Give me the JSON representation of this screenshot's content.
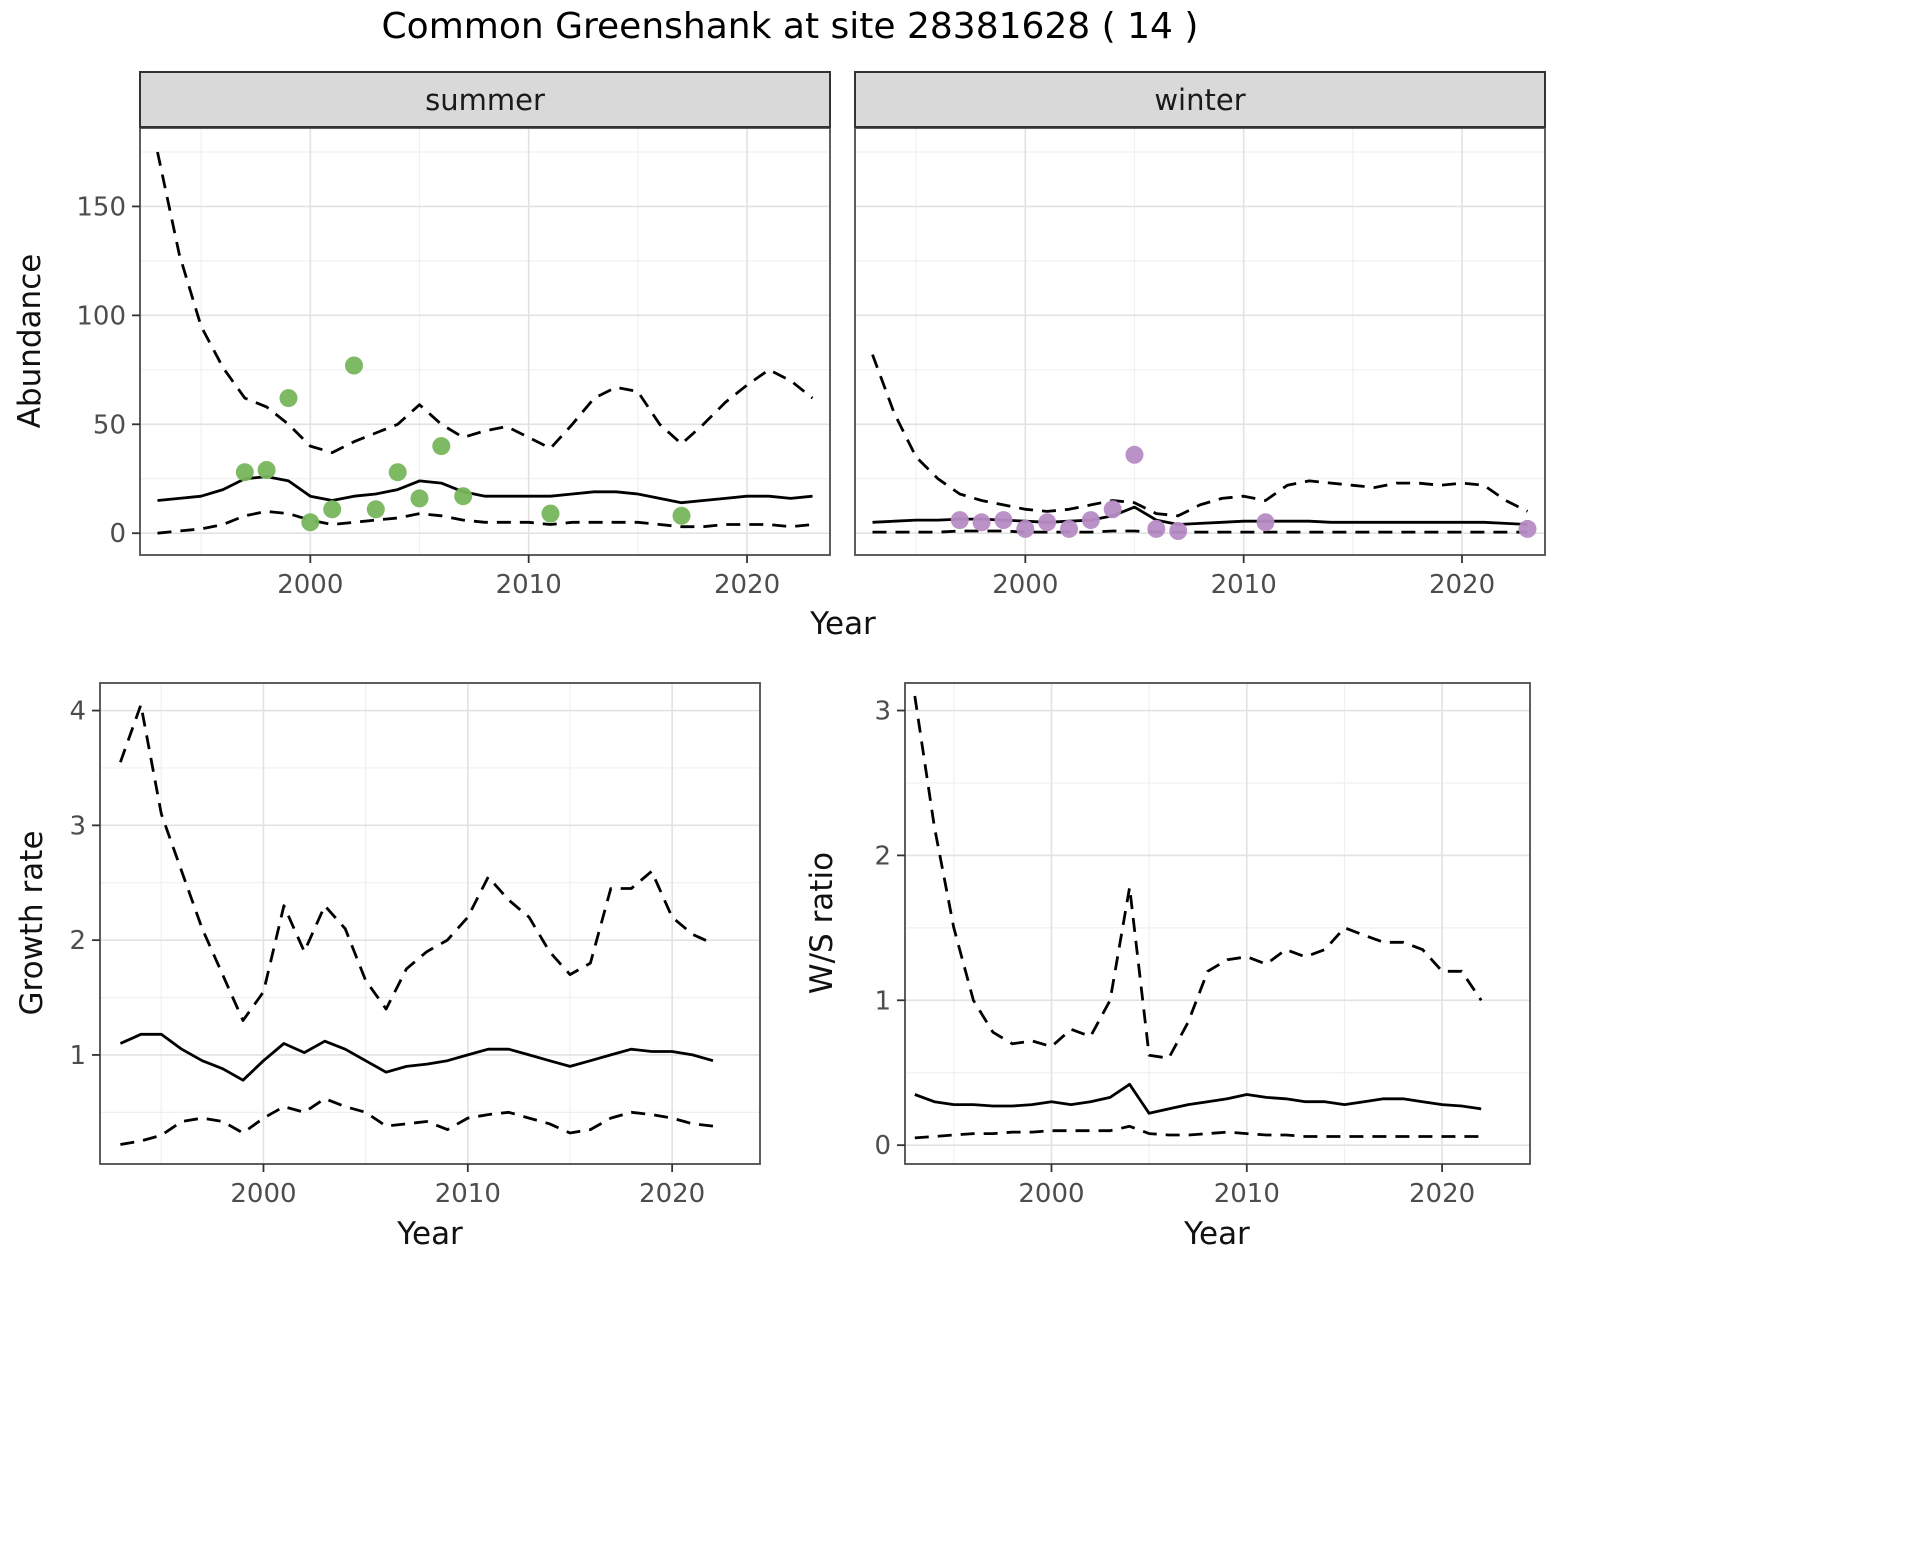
{
  "title": "Common Greenshank at site 28381628 ( 14 )",
  "colors": {
    "line": "#000000",
    "grid_major": "#e2e2e2",
    "grid_minor": "#f0f0f0",
    "strip_bg": "#d9d9d9",
    "panel_border": "#4d4d4d",
    "axis_text": "#4d4d4d",
    "tick": "#333333",
    "summer_points": "#77b55b",
    "winter_points": "#b78cc4"
  },
  "chart_data": [
    {
      "name": "summer-abundance",
      "type": "line",
      "facet": "summer",
      "xlabel": "Year",
      "ylabel": "Abundance",
      "xlim": [
        1992.2,
        2023.8
      ],
      "ylim": [
        -10,
        186
      ],
      "xticks": [
        2000,
        2010,
        2020
      ],
      "yticks": [
        0,
        50,
        100,
        150
      ],
      "xminor": [
        1995,
        2005,
        2015
      ],
      "yminor": [
        25,
        75,
        125,
        175
      ],
      "x": [
        1993,
        1994,
        1995,
        1996,
        1997,
        1998,
        1999,
        2000,
        2001,
        2002,
        2003,
        2004,
        2005,
        2006,
        2007,
        2008,
        2009,
        2010,
        2011,
        2012,
        2013,
        2014,
        2015,
        2016,
        2017,
        2018,
        2019,
        2020,
        2021,
        2022,
        2023
      ],
      "series": [
        {
          "name": "upper-ci",
          "style": "dashed",
          "values": [
            175,
            128,
            95,
            76,
            62,
            58,
            50,
            40,
            37,
            42,
            46,
            50,
            59,
            50,
            44,
            47,
            49,
            44,
            39,
            50,
            62,
            67,
            65,
            50,
            41,
            50,
            60,
            68,
            75,
            70,
            62
          ]
        },
        {
          "name": "median",
          "style": "solid",
          "values": [
            15,
            16,
            17,
            20,
            25,
            26,
            24,
            17,
            15,
            17,
            18,
            20,
            24,
            23,
            19,
            17,
            17,
            17,
            17,
            18,
            19,
            19,
            18,
            16,
            14,
            15,
            16,
            17,
            17,
            16,
            17
          ]
        },
        {
          "name": "lower-ci",
          "style": "dashed",
          "values": [
            0,
            1,
            2,
            4,
            8,
            10,
            9,
            6,
            4,
            5,
            6,
            7,
            9,
            8,
            6,
            5,
            5,
            5,
            4,
            5,
            5,
            5,
            5,
            4,
            3,
            3,
            4,
            4,
            4,
            3,
            4
          ]
        }
      ],
      "points": {
        "name": "observed-counts",
        "color": "#77b55b",
        "x": [
          1997,
          1998,
          1999,
          2000,
          2001,
          2002,
          2003,
          2004,
          2005,
          2006,
          2007,
          2011,
          2017
        ],
        "y": [
          28,
          29,
          62,
          5,
          11,
          77,
          11,
          28,
          16,
          40,
          17,
          9,
          8
        ]
      }
    },
    {
      "name": "winter-abundance",
      "type": "line",
      "facet": "winter",
      "xlabel": "Year",
      "ylabel": "Abundance",
      "xlim": [
        1992.2,
        2023.8
      ],
      "ylim": [
        -10,
        186
      ],
      "xticks": [
        2000,
        2010,
        2020
      ],
      "yticks": [
        0,
        50,
        100,
        150
      ],
      "xminor": [
        1995,
        2005,
        2015
      ],
      "yminor": [
        25,
        75,
        125,
        175
      ],
      "x": [
        1993,
        1994,
        1995,
        1996,
        1997,
        1998,
        1999,
        2000,
        2001,
        2002,
        2003,
        2004,
        2005,
        2006,
        2007,
        2008,
        2009,
        2010,
        2011,
        2012,
        2013,
        2014,
        2015,
        2016,
        2017,
        2018,
        2019,
        2020,
        2021,
        2022,
        2023
      ],
      "series": [
        {
          "name": "upper-ci",
          "style": "dashed",
          "values": [
            82,
            55,
            35,
            25,
            18,
            15,
            13,
            11,
            10,
            11,
            13,
            15,
            14,
            9,
            8,
            13,
            16,
            17,
            15,
            22,
            24,
            23,
            22,
            21,
            23,
            23,
            22,
            23,
            22,
            15,
            10
          ]
        },
        {
          "name": "median",
          "style": "solid",
          "values": [
            5,
            5.5,
            6,
            6,
            6.5,
            6.5,
            6,
            5.5,
            5,
            5.5,
            6,
            8,
            12,
            6,
            4,
            4.5,
            5,
            5.5,
            5.5,
            5.5,
            5.5,
            5,
            5,
            5,
            5,
            5,
            5,
            5,
            5,
            4.5,
            4
          ]
        },
        {
          "name": "lower-ci",
          "style": "dashed",
          "values": [
            0.5,
            0.5,
            0.5,
            0.5,
            1,
            1,
            1,
            0.5,
            0.5,
            0.5,
            0.5,
            1,
            1,
            0.5,
            0.5,
            0.5,
            0.5,
            0.5,
            0.5,
            0.5,
            0.5,
            0.5,
            0.5,
            0.5,
            0.5,
            0.5,
            0.5,
            0.5,
            0.5,
            0.5,
            0.5
          ]
        }
      ],
      "points": {
        "name": "observed-counts",
        "color": "#b78cc4",
        "x": [
          1997,
          1998,
          1999,
          2000,
          2001,
          2002,
          2003,
          2004,
          2005,
          2006,
          2007,
          2011,
          2023
        ],
        "y": [
          6,
          5,
          6,
          2,
          5,
          2,
          6,
          11,
          36,
          2,
          1,
          5,
          2
        ]
      }
    },
    {
      "name": "growth-rate",
      "type": "line",
      "facet": "",
      "xlabel": "Year",
      "ylabel": "Growth rate",
      "xlim": [
        1992,
        2024.3
      ],
      "ylim": [
        0.05,
        4.24
      ],
      "xticks": [
        2000,
        2010,
        2020
      ],
      "yticks": [
        1,
        2,
        3,
        4
      ],
      "xminor": [
        1995,
        2005,
        2015
      ],
      "yminor": [
        0.5,
        1.5,
        2.5,
        3.5
      ],
      "x": [
        1993,
        1994,
        1995,
        1996,
        1997,
        1998,
        1999,
        2000,
        2001,
        2002,
        2003,
        2004,
        2005,
        2006,
        2007,
        2008,
        2009,
        2010,
        2011,
        2012,
        2013,
        2014,
        2015,
        2016,
        2017,
        2018,
        2019,
        2020,
        2021,
        2022
      ],
      "series": [
        {
          "name": "upper-ci",
          "style": "dashed",
          "values": [
            3.55,
            4.05,
            3.1,
            2.6,
            2.1,
            1.7,
            1.3,
            1.55,
            2.3,
            1.9,
            2.3,
            2.1,
            1.65,
            1.4,
            1.75,
            1.9,
            2.0,
            2.2,
            2.55,
            2.35,
            2.2,
            1.9,
            1.7,
            1.8,
            2.45,
            2.45,
            2.6,
            2.2,
            2.05,
            1.97
          ]
        },
        {
          "name": "median",
          "style": "solid",
          "values": [
            1.1,
            1.18,
            1.18,
            1.05,
            0.95,
            0.88,
            0.78,
            0.95,
            1.1,
            1.02,
            1.12,
            1.05,
            0.95,
            0.85,
            0.9,
            0.92,
            0.95,
            1.0,
            1.05,
            1.05,
            1.0,
            0.95,
            0.9,
            0.95,
            1.0,
            1.05,
            1.03,
            1.03,
            1.0,
            0.95
          ]
        },
        {
          "name": "lower-ci",
          "style": "dashed",
          "values": [
            0.22,
            0.25,
            0.3,
            0.42,
            0.45,
            0.42,
            0.32,
            0.45,
            0.55,
            0.5,
            0.62,
            0.55,
            0.5,
            0.38,
            0.4,
            0.42,
            0.35,
            0.45,
            0.48,
            0.5,
            0.45,
            0.4,
            0.32,
            0.35,
            0.45,
            0.5,
            0.48,
            0.45,
            0.4,
            0.38
          ]
        }
      ],
      "points": null
    },
    {
      "name": "ws-ratio",
      "type": "line",
      "facet": "",
      "xlabel": "Year",
      "ylabel": "W/S ratio",
      "xlim": [
        1992.5,
        2024.5
      ],
      "ylim": [
        -0.13,
        3.19
      ],
      "xticks": [
        2000,
        2010,
        2020
      ],
      "yticks": [
        0,
        1,
        2,
        3
      ],
      "xminor": [
        1995,
        2005,
        2015
      ],
      "yminor": [
        0.5,
        1.5,
        2.5
      ],
      "x": [
        1993,
        1994,
        1995,
        1996,
        1997,
        1998,
        1999,
        2000,
        2001,
        2002,
        2003,
        2004,
        2005,
        2006,
        2007,
        2008,
        2009,
        2010,
        2011,
        2012,
        2013,
        2014,
        2015,
        2016,
        2017,
        2018,
        2019,
        2020,
        2021,
        2022
      ],
      "series": [
        {
          "name": "upper-ci",
          "style": "dashed",
          "values": [
            3.1,
            2.2,
            1.5,
            1.0,
            0.78,
            0.7,
            0.72,
            0.68,
            0.8,
            0.75,
            1.0,
            1.78,
            0.62,
            0.6,
            0.85,
            1.2,
            1.28,
            1.3,
            1.25,
            1.35,
            1.3,
            1.35,
            1.5,
            1.45,
            1.4,
            1.4,
            1.35,
            1.2,
            1.2,
            1.0
          ]
        },
        {
          "name": "median",
          "style": "solid",
          "values": [
            0.35,
            0.3,
            0.28,
            0.28,
            0.27,
            0.27,
            0.28,
            0.3,
            0.28,
            0.3,
            0.33,
            0.42,
            0.22,
            0.25,
            0.28,
            0.3,
            0.32,
            0.35,
            0.33,
            0.32,
            0.3,
            0.3,
            0.28,
            0.3,
            0.32,
            0.32,
            0.3,
            0.28,
            0.27,
            0.25
          ]
        },
        {
          "name": "lower-ci",
          "style": "dashed",
          "values": [
            0.05,
            0.06,
            0.07,
            0.08,
            0.08,
            0.09,
            0.09,
            0.1,
            0.1,
            0.1,
            0.1,
            0.13,
            0.08,
            0.07,
            0.07,
            0.08,
            0.09,
            0.08,
            0.07,
            0.07,
            0.06,
            0.06,
            0.06,
            0.06,
            0.06,
            0.06,
            0.06,
            0.06,
            0.06,
            0.06
          ]
        }
      ],
      "points": null
    }
  ]
}
